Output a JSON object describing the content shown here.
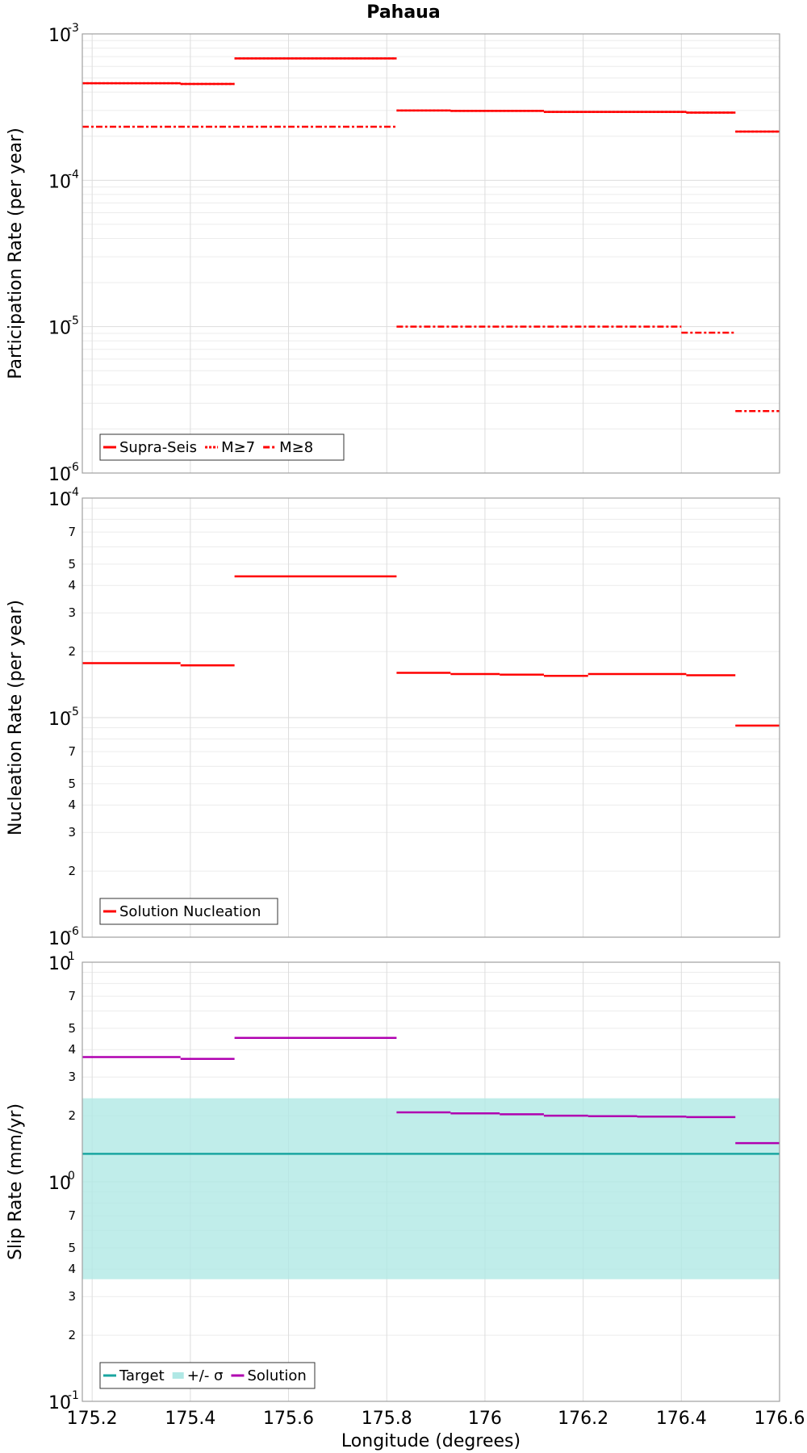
{
  "figure": {
    "title": "Pahaua",
    "xlabel": "Longitude (degrees)"
  },
  "chart_data": [
    {
      "type": "line",
      "ylabel": "Participation Rate (per year)",
      "yscale": "log",
      "xlim": [
        175.18,
        176.6
      ],
      "ylim": [
        1e-06,
        0.001
      ],
      "x_ticks": [
        "175.2",
        "175.4",
        "175.6",
        "175.8",
        "176",
        "176.2",
        "176.4",
        "176.6"
      ],
      "y_ticks_major": [
        {
          "base": "10",
          "exp": "-6"
        },
        {
          "base": "10",
          "exp": "-5"
        },
        {
          "base": "10",
          "exp": "-4"
        },
        {
          "base": "10",
          "exp": "-3"
        }
      ],
      "y_ticks_minor": [],
      "grid": true,
      "legend_position": "bottom-left",
      "series": [
        {
          "name": "Supra-Seis",
          "color": "#ff0000",
          "style": "solid",
          "segments": [
            {
              "x0": 175.18,
              "x1": 175.38,
              "y": 0.00046
            },
            {
              "x0": 175.38,
              "x1": 175.49,
              "y": 0.000455
            },
            {
              "x0": 175.49,
              "x1": 175.82,
              "y": 0.00068
            },
            {
              "x0": 175.82,
              "x1": 175.93,
              "y": 0.0003
            },
            {
              "x0": 175.93,
              "x1": 176.12,
              "y": 0.000298
            },
            {
              "x0": 176.12,
              "x1": 176.41,
              "y": 0.000293
            },
            {
              "x0": 176.41,
              "x1": 176.51,
              "y": 0.00029
            },
            {
              "x0": 176.51,
              "x1": 176.6,
              "y": 0.000215
            }
          ]
        },
        {
          "name": "M≥7",
          "color": "#ff0000",
          "style": "dotted",
          "segments": [
            {
              "x0": 175.18,
              "x1": 175.38,
              "y": 0.00046
            },
            {
              "x0": 175.38,
              "x1": 175.49,
              "y": 0.000455
            },
            {
              "x0": 175.49,
              "x1": 175.82,
              "y": 0.00068
            },
            {
              "x0": 175.82,
              "x1": 175.93,
              "y": 0.0003
            },
            {
              "x0": 175.93,
              "x1": 176.12,
              "y": 0.000298
            },
            {
              "x0": 176.12,
              "x1": 176.41,
              "y": 0.000293
            },
            {
              "x0": 176.41,
              "x1": 176.51,
              "y": 0.00029
            },
            {
              "x0": 176.51,
              "x1": 176.6,
              "y": 0.000215
            }
          ]
        },
        {
          "name": "M≥8",
          "color": "#ff0000",
          "style": "dashdot",
          "segments": [
            {
              "x0": 175.18,
              "x1": 175.82,
              "y": 0.000232
            },
            {
              "x0": 175.82,
              "x1": 176.4,
              "y": 1e-05
            },
            {
              "x0": 176.4,
              "x1": 176.51,
              "y": 9.1e-06
            },
            {
              "x0": 176.51,
              "x1": 176.6,
              "y": 2.65e-06
            }
          ]
        }
      ]
    },
    {
      "type": "line",
      "ylabel": "Nucleation Rate (per year)",
      "yscale": "log",
      "xlim": [
        175.18,
        176.6
      ],
      "ylim": [
        1e-06,
        0.0001
      ],
      "x_ticks": [
        "175.2",
        "175.4",
        "175.6",
        "175.8",
        "176",
        "176.2",
        "176.4",
        "176.6"
      ],
      "y_ticks_major": [
        {
          "base": "10",
          "exp": "-6"
        },
        {
          "base": "10",
          "exp": "-5"
        },
        {
          "base": "10",
          "exp": "-4"
        }
      ],
      "y_ticks_minor": [
        "2",
        "3",
        "4",
        "5",
        "7"
      ],
      "grid": true,
      "legend_position": "bottom-left",
      "series": [
        {
          "name": "Solution Nucleation",
          "color": "#ff0000",
          "style": "solid",
          "segments": [
            {
              "x0": 175.18,
              "x1": 175.38,
              "y": 1.77e-05
            },
            {
              "x0": 175.38,
              "x1": 175.49,
              "y": 1.73e-05
            },
            {
              "x0": 175.49,
              "x1": 175.82,
              "y": 4.4e-05
            },
            {
              "x0": 175.82,
              "x1": 175.93,
              "y": 1.6e-05
            },
            {
              "x0": 175.93,
              "x1": 176.03,
              "y": 1.58e-05
            },
            {
              "x0": 176.03,
              "x1": 176.12,
              "y": 1.57e-05
            },
            {
              "x0": 176.12,
              "x1": 176.21,
              "y": 1.55e-05
            },
            {
              "x0": 176.21,
              "x1": 176.41,
              "y": 1.58e-05
            },
            {
              "x0": 176.41,
              "x1": 176.51,
              "y": 1.56e-05
            },
            {
              "x0": 176.51,
              "x1": 176.6,
              "y": 9.2e-06
            }
          ]
        }
      ]
    },
    {
      "type": "line",
      "ylabel": "Slip Rate (mm/yr)",
      "yscale": "log",
      "xlim": [
        175.18,
        176.6
      ],
      "ylim": [
        0.1,
        10
      ],
      "x_ticks": [
        "175.2",
        "175.4",
        "175.6",
        "175.8",
        "176",
        "176.2",
        "176.4",
        "176.6"
      ],
      "y_ticks_major": [
        {
          "base": "10",
          "exp": "-1"
        },
        {
          "base": "10",
          "exp": "0"
        },
        {
          "base": "10",
          "exp": "1"
        }
      ],
      "y_ticks_minor": [
        "2",
        "3",
        "4",
        "5",
        "7"
      ],
      "grid": true,
      "legend_position": "bottom-left",
      "band": {
        "name": "+/- σ",
        "color": "#b0e8e5",
        "y0": 0.36,
        "y1": 2.4
      },
      "series": [
        {
          "name": "Target",
          "color": "#1aa6a0",
          "style": "solid",
          "segments": [
            {
              "x0": 175.18,
              "x1": 176.6,
              "y": 1.34
            }
          ]
        },
        {
          "name": "Solution",
          "color": "#b000b0",
          "style": "solid",
          "segments": [
            {
              "x0": 175.18,
              "x1": 175.38,
              "y": 3.7
            },
            {
              "x0": 175.38,
              "x1": 175.49,
              "y": 3.63
            },
            {
              "x0": 175.49,
              "x1": 175.82,
              "y": 4.52
            },
            {
              "x0": 175.82,
              "x1": 175.93,
              "y": 2.07
            },
            {
              "x0": 175.93,
              "x1": 176.03,
              "y": 2.05
            },
            {
              "x0": 176.03,
              "x1": 176.12,
              "y": 2.03
            },
            {
              "x0": 176.12,
              "x1": 176.21,
              "y": 2.0
            },
            {
              "x0": 176.21,
              "x1": 176.31,
              "y": 1.99
            },
            {
              "x0": 176.31,
              "x1": 176.41,
              "y": 1.98
            },
            {
              "x0": 176.41,
              "x1": 176.51,
              "y": 1.97
            },
            {
              "x0": 176.51,
              "x1": 176.6,
              "y": 1.5
            }
          ]
        }
      ]
    }
  ]
}
